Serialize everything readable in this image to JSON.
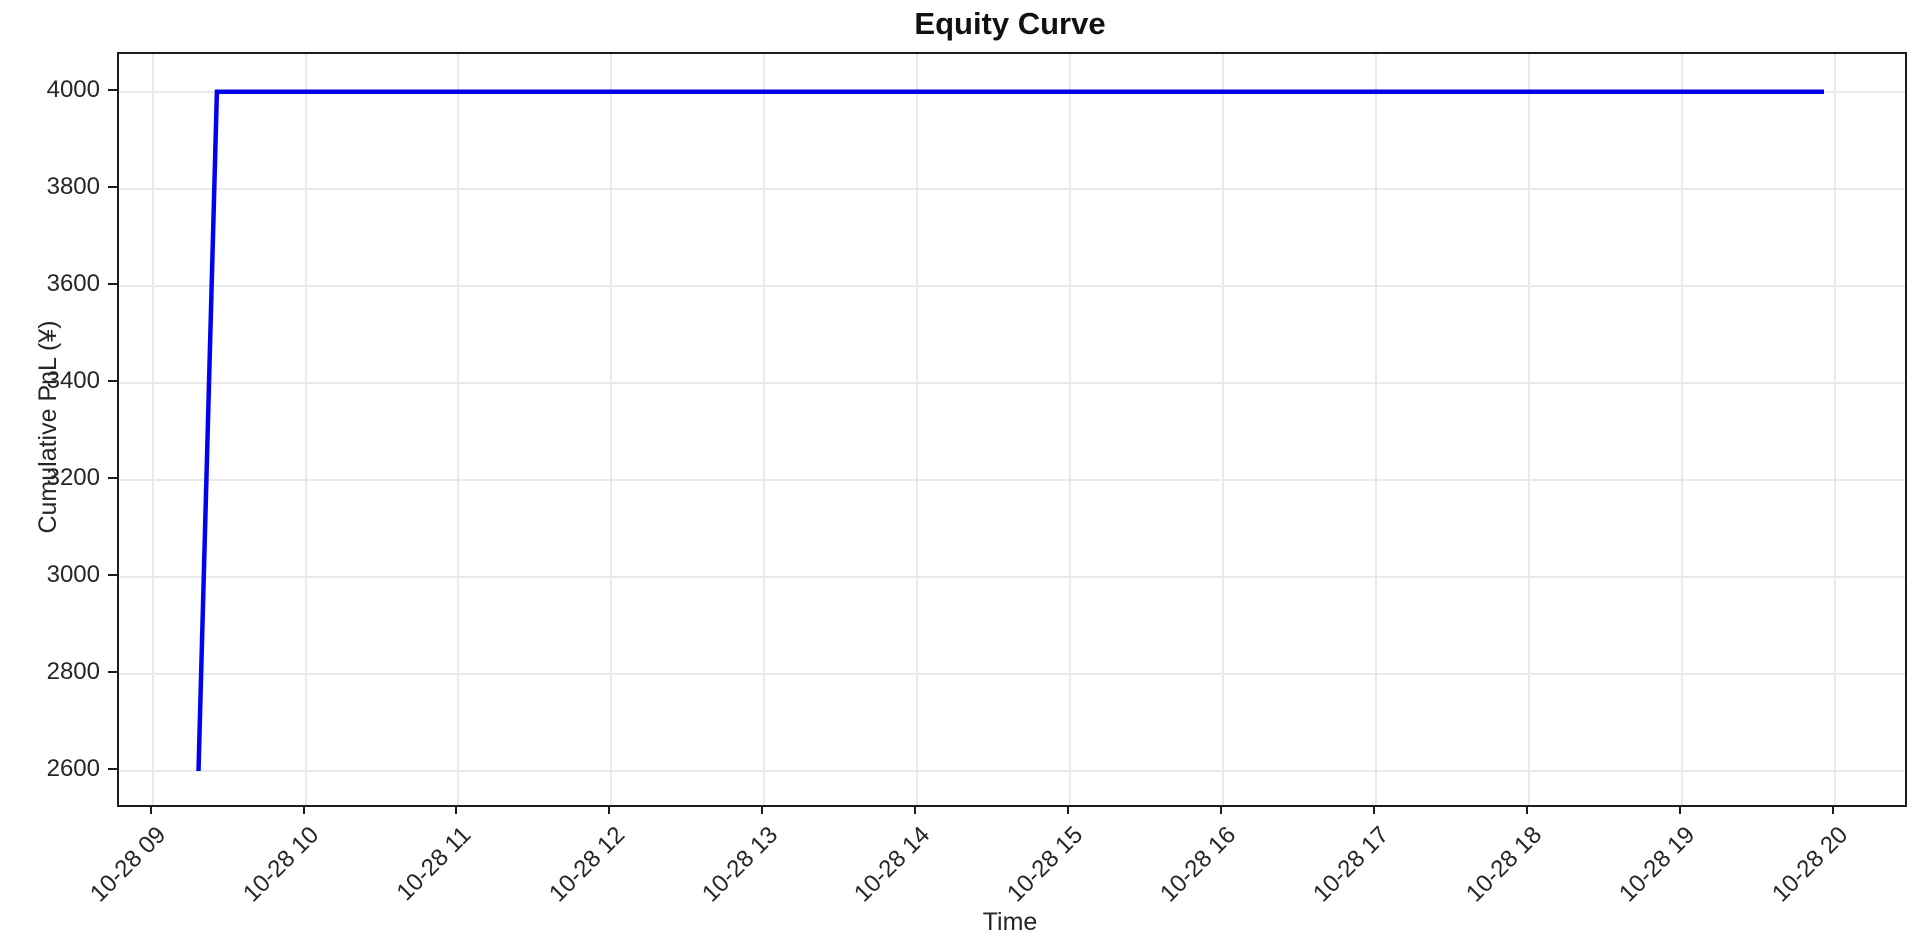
{
  "chart_data": {
    "type": "line",
    "title": "Equity Curve",
    "xlabel": "Time",
    "ylabel": "Cumulative PnL (¥)",
    "grid": true,
    "legend": null,
    "line_color": "#0202ee",
    "grid_color": "#e9e9e9",
    "frame_color": "#1c1c1c",
    "xlim_hours": [
      8.78,
      20.46
    ],
    "ylim": [
      2530,
      4078
    ],
    "y_ticks": [
      2600,
      2800,
      3000,
      3200,
      3400,
      3600,
      3800,
      4000
    ],
    "x_ticks": [
      {
        "hour": 9,
        "label": "10-28 09"
      },
      {
        "hour": 10,
        "label": "10-28 10"
      },
      {
        "hour": 11,
        "label": "10-28 11"
      },
      {
        "hour": 12,
        "label": "10-28 12"
      },
      {
        "hour": 13,
        "label": "10-28 13"
      },
      {
        "hour": 14,
        "label": "10-28 14"
      },
      {
        "hour": 15,
        "label": "10-28 15"
      },
      {
        "hour": 16,
        "label": "10-28 16"
      },
      {
        "hour": 17,
        "label": "10-28 17"
      },
      {
        "hour": 18,
        "label": "10-28 18"
      },
      {
        "hour": 19,
        "label": "10-28 19"
      },
      {
        "hour": 20,
        "label": "10-28 20"
      }
    ],
    "series": [
      {
        "name": "Cumulative PnL",
        "color": "#0202ee",
        "points": [
          {
            "time": "10-28 09:18",
            "hour": 9.3,
            "value": 2600
          },
          {
            "time": "10-28 09:25",
            "hour": 9.42,
            "value": 4000
          },
          {
            "time": "10-28 19:56",
            "hour": 19.93,
            "value": 4000
          }
        ]
      }
    ]
  }
}
